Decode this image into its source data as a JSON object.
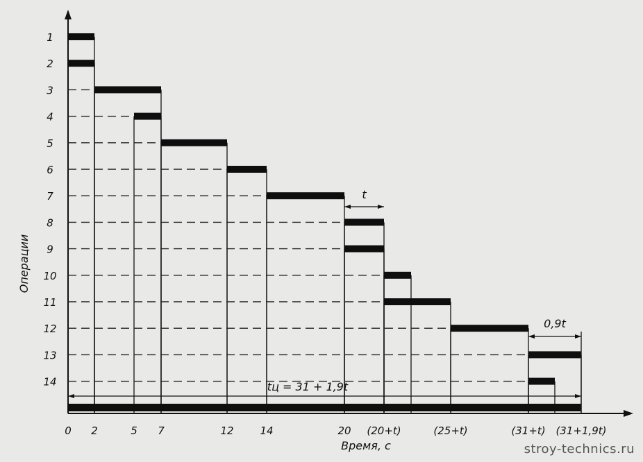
{
  "chart_data": {
    "type": "gantt",
    "ylabel": "Операции",
    "xlabel": "Время, с",
    "y_categories": [
      "1",
      "2",
      "3",
      "4",
      "5",
      "6",
      "7",
      "8",
      "9",
      "10",
      "11",
      "12",
      "13",
      "14"
    ],
    "x_ticks": [
      {
        "label": "0",
        "value": 0
      },
      {
        "label": "2",
        "value": 2
      },
      {
        "label": "5",
        "value": 5
      },
      {
        "label": "7",
        "value": 7
      },
      {
        "label": "12",
        "value": 12
      },
      {
        "label": "14",
        "value": 14
      },
      {
        "label": "20",
        "value": 20
      },
      {
        "label": "(20+t)",
        "value": 21
      },
      {
        "label": "(25+t)",
        "value": 26
      },
      {
        "label": "(31+t)",
        "value": 32
      },
      {
        "label": "(31+1,9t)",
        "value": 32.9
      }
    ],
    "bars": [
      {
        "op": "1",
        "start": 0,
        "end": 2
      },
      {
        "op": "2",
        "start": 0,
        "end": 2
      },
      {
        "op": "3",
        "start": 2,
        "end": 7
      },
      {
        "op": "4",
        "start": 5,
        "end": 7
      },
      {
        "op": "5",
        "start": 7,
        "end": 12
      },
      {
        "op": "6",
        "start": 12,
        "end": 14
      },
      {
        "op": "7",
        "start": 14,
        "end": 20
      },
      {
        "op": "8",
        "start": 20,
        "end": 21
      },
      {
        "op": "9",
        "start": 20,
        "end": 21
      },
      {
        "op": "10",
        "start": 21,
        "end": 22
      },
      {
        "op": "11",
        "start": 21,
        "end": 26
      },
      {
        "op": "12",
        "start": 26,
        "end": 32
      },
      {
        "op": "13",
        "start": 32,
        "end": 32.9
      },
      {
        "op": "14",
        "start": 32,
        "end": 33
      }
    ],
    "cycle_bar": {
      "start": 0,
      "end": 32.9
    },
    "annotations": [
      {
        "text": "t",
        "from": 20,
        "to": 21
      },
      {
        "text": "0,9t",
        "from": 32,
        "to": 32.9
      },
      {
        "text": "tц = 31 + 1,9t",
        "from": 0,
        "to": 32.9
      }
    ],
    "xlim": [
      0,
      35
    ]
  },
  "watermark": "stroy-technics.ru"
}
